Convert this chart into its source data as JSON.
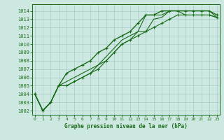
{
  "title": "Graphe pression niveau de la mer (hPa)",
  "background_color": "#cce8e0",
  "grid_color": "#aacccc",
  "line_color": "#1a6b1a",
  "x_ticks": [
    0,
    1,
    2,
    3,
    4,
    5,
    6,
    7,
    8,
    9,
    10,
    11,
    12,
    13,
    14,
    15,
    16,
    17,
    18,
    19,
    20,
    21,
    22,
    23
  ],
  "y_ticks": [
    1002,
    1003,
    1004,
    1005,
    1006,
    1007,
    1008,
    1009,
    1010,
    1011,
    1012,
    1013,
    1014
  ],
  "ylim": [
    1001.5,
    1014.8
  ],
  "xlim": [
    -0.3,
    23.3
  ],
  "series": [
    {
      "y": [
        1004.0,
        1002.0,
        1003.0,
        1005.0,
        1006.5,
        1007.0,
        1007.5,
        1008.0,
        1009.0,
        1009.5,
        1010.5,
        1011.0,
        1011.5,
        1012.5,
        1013.5,
        1013.5,
        1014.0,
        1014.0,
        1014.0,
        1014.0,
        1014.0,
        1014.0,
        1014.0,
        1013.5
      ],
      "marker": true,
      "linewidth": 1.0
    },
    {
      "y": [
        1004.0,
        1002.0,
        1003.0,
        1005.0,
        1005.5,
        1006.0,
        1006.5,
        1007.0,
        1007.5,
        1008.5,
        1009.5,
        1010.5,
        1011.0,
        1011.5,
        1013.5,
        1013.5,
        1013.5,
        1014.0,
        1014.0,
        1014.0,
        1014.0,
        1014.0,
        1014.0,
        1013.2
      ],
      "marker": false,
      "linewidth": 0.8
    },
    {
      "y": [
        1004.0,
        1002.0,
        1003.0,
        1005.0,
        1005.0,
        1005.5,
        1006.0,
        1006.5,
        1007.5,
        1008.0,
        1009.0,
        1010.0,
        1010.5,
        1011.5,
        1011.5,
        1013.0,
        1013.2,
        1014.0,
        1014.0,
        1013.5,
        1013.5,
        1013.5,
        1013.5,
        1013.2
      ],
      "marker": false,
      "linewidth": 0.8
    },
    {
      "y": [
        1004.0,
        1002.0,
        1003.0,
        1005.0,
        1005.0,
        1005.5,
        1006.0,
        1006.5,
        1007.0,
        1008.0,
        1009.0,
        1010.0,
        1010.5,
        1011.0,
        1011.5,
        1012.0,
        1012.5,
        1013.0,
        1013.5,
        1013.5,
        1013.5,
        1013.5,
        1013.5,
        1013.2
      ],
      "marker": true,
      "linewidth": 0.8
    }
  ]
}
